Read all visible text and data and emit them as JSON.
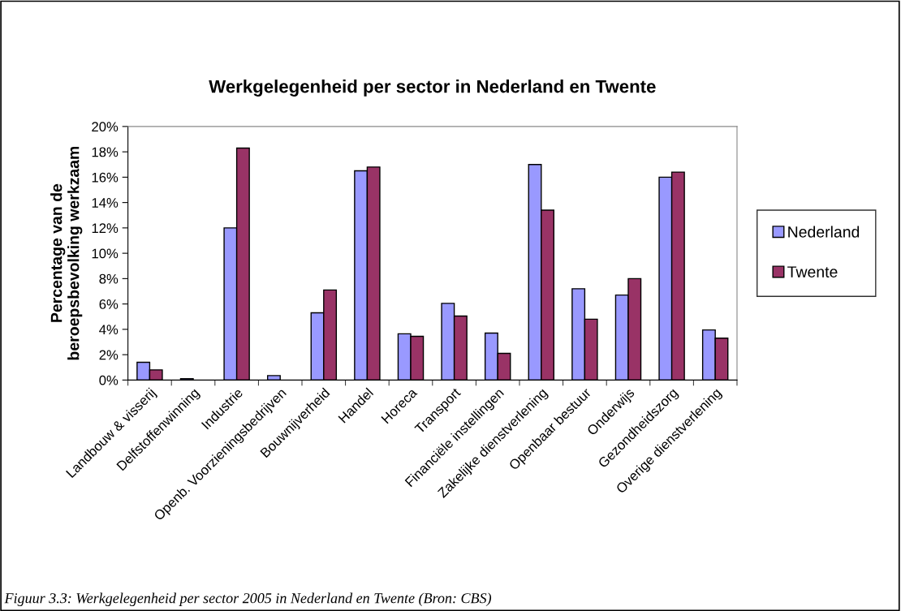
{
  "chart_data": {
    "type": "bar",
    "title": "Werkgelegenheid per sector in Nederland en Twente",
    "ylabel": "Percentage van de\nberoepsbevolking werkzaam",
    "categories": [
      "Landbouw & visserij",
      "Delfstoffenwinning",
      "Industrie",
      "Openb. Voorzieningsbedrijven",
      "Bouwnijverheid",
      "Handel",
      "Horeca",
      "Transport",
      "Financiële instellingen",
      "Zakelijke dienstverlening",
      "Openbaar bestuur",
      "Onderwijs",
      "Gezondheidszorg",
      "Overige dienstverlening"
    ],
    "series": [
      {
        "name": "Nederland",
        "color": "#9999ff",
        "values": [
          1.4,
          0.1,
          12.0,
          0.35,
          5.3,
          16.5,
          3.65,
          6.05,
          3.7,
          17.0,
          7.2,
          6.7,
          16.0,
          3.95
        ]
      },
      {
        "name": "Twente",
        "color": "#993366",
        "values": [
          0.8,
          null,
          18.3,
          null,
          7.1,
          16.8,
          3.45,
          5.05,
          2.1,
          13.4,
          4.8,
          8.0,
          16.4,
          3.3
        ]
      }
    ],
    "ylim": [
      0,
      20
    ],
    "yticks": [
      {
        "value": 0,
        "label": "0%"
      },
      {
        "value": 2,
        "label": "2%"
      },
      {
        "value": 4,
        "label": "4%"
      },
      {
        "value": 6,
        "label": "6%"
      },
      {
        "value": 8,
        "label": "8%"
      },
      {
        "value": 10,
        "label": "10%"
      },
      {
        "value": 12,
        "label": "12%"
      },
      {
        "value": 14,
        "label": "14%"
      },
      {
        "value": 16,
        "label": "16%"
      },
      {
        "value": 18,
        "label": "18%"
      },
      {
        "value": 20,
        "label": "20%"
      }
    ],
    "legend": "right",
    "annotations": [
      "Figuur 3.3: Werkgelegenheid per sector 2005 in Nederland en Twente (Bron: CBS)"
    ]
  }
}
